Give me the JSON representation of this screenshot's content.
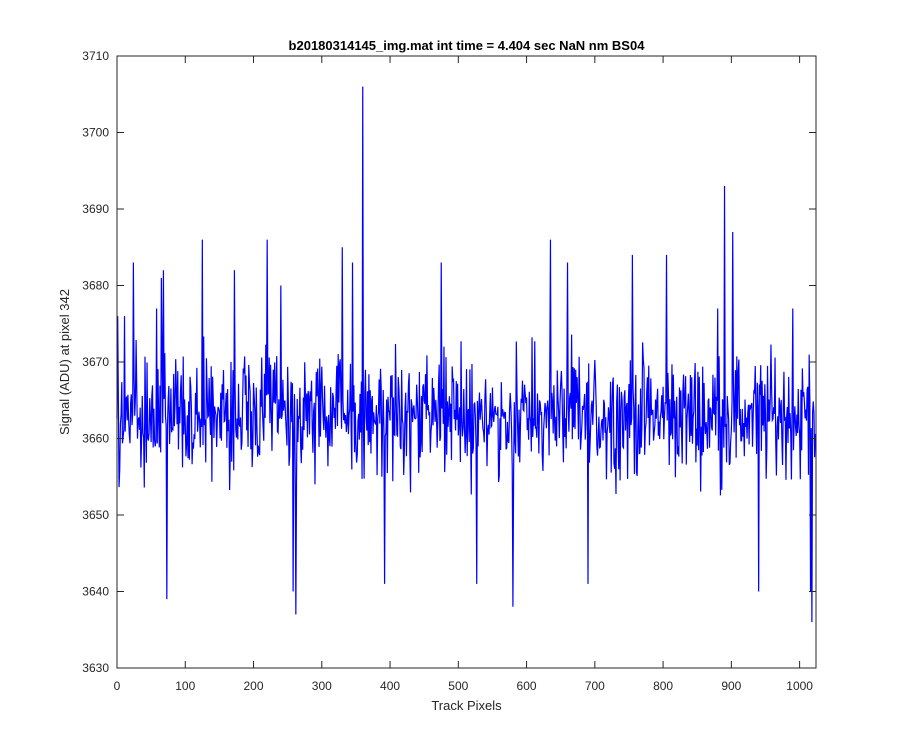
{
  "chart_data": {
    "type": "line",
    "title": "b20180314145_img.mat int time = 4.404 sec  NaN nm BS04",
    "xlabel": "Track Pixels",
    "ylabel": "Signal (ADU) at pixel 342",
    "xlim": [
      0,
      1024
    ],
    "ylim": [
      3630,
      3710
    ],
    "xticks": [
      0,
      100,
      200,
      300,
      400,
      500,
      600,
      700,
      800,
      900,
      1000
    ],
    "yticks": [
      3630,
      3640,
      3650,
      3660,
      3670,
      3680,
      3690,
      3700,
      3710
    ],
    "grid": false,
    "legend": "none",
    "series": [
      {
        "color": "#0000ff",
        "points_count": 1024,
        "mean": 3663,
        "noise_amplitude": 10,
        "spikes": [
          {
            "x": 1,
            "y": 3676
          },
          {
            "x": 11,
            "y": 3676
          },
          {
            "x": 24,
            "y": 3683
          },
          {
            "x": 58,
            "y": 3677
          },
          {
            "x": 65,
            "y": 3681
          },
          {
            "x": 68,
            "y": 3682
          },
          {
            "x": 73,
            "y": 3639
          },
          {
            "x": 125,
            "y": 3686
          },
          {
            "x": 172,
            "y": 3682
          },
          {
            "x": 220,
            "y": 3686
          },
          {
            "x": 240,
            "y": 3680
          },
          {
            "x": 258,
            "y": 3640
          },
          {
            "x": 262,
            "y": 3637
          },
          {
            "x": 330,
            "y": 3685
          },
          {
            "x": 345,
            "y": 3683
          },
          {
            "x": 360,
            "y": 3706
          },
          {
            "x": 392,
            "y": 3641
          },
          {
            "x": 475,
            "y": 3683
          },
          {
            "x": 527,
            "y": 3641
          },
          {
            "x": 580,
            "y": 3638
          },
          {
            "x": 635,
            "y": 3686
          },
          {
            "x": 660,
            "y": 3683
          },
          {
            "x": 690,
            "y": 3641
          },
          {
            "x": 755,
            "y": 3684
          },
          {
            "x": 805,
            "y": 3684
          },
          {
            "x": 880,
            "y": 3677
          },
          {
            "x": 890,
            "y": 3693
          },
          {
            "x": 902,
            "y": 3687
          },
          {
            "x": 940,
            "y": 3640
          },
          {
            "x": 990,
            "y": 3677
          },
          {
            "x": 1016,
            "y": 3640
          },
          {
            "x": 1018,
            "y": 3636
          }
        ]
      }
    ]
  }
}
